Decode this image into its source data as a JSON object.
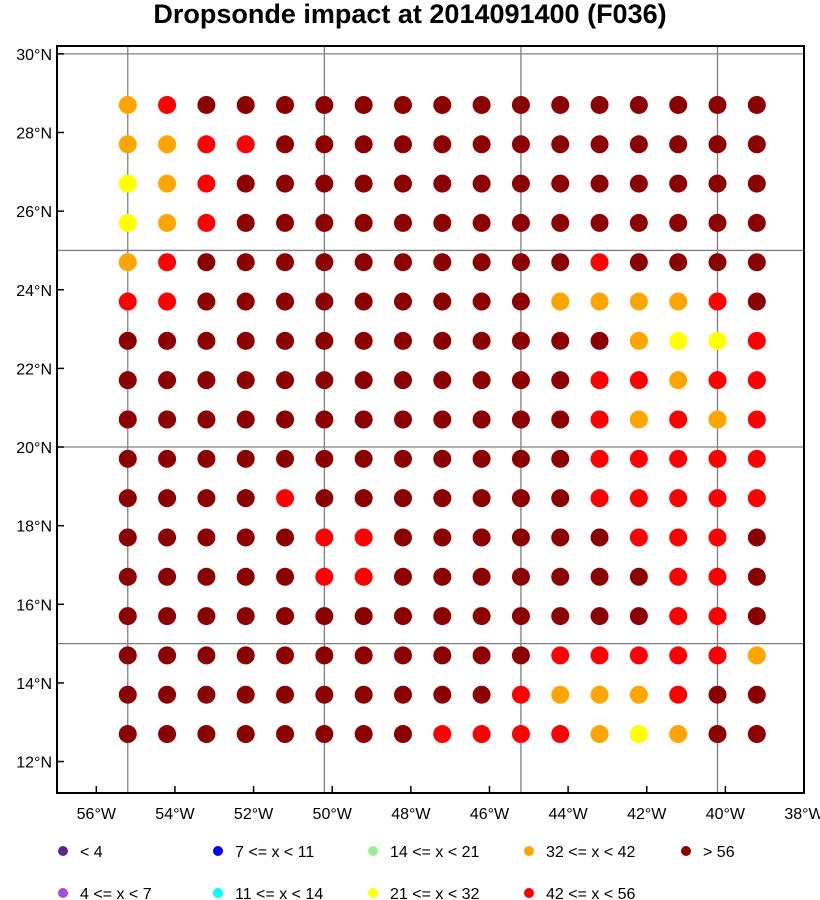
{
  "title": "Dropsonde impact at 2014091400 (F036)",
  "map": {
    "lon_range": [
      -57,
      -38
    ],
    "lat_range": [
      11.2,
      30.2
    ],
    "lon_ticks": [
      {
        "value": -56,
        "label": "56°W"
      },
      {
        "value": -54,
        "label": "54°W"
      },
      {
        "value": -52,
        "label": "52°W"
      },
      {
        "value": -50,
        "label": "50°W"
      },
      {
        "value": -48,
        "label": "48°W"
      },
      {
        "value": -46,
        "label": "46°W"
      },
      {
        "value": -44,
        "label": "44°W"
      },
      {
        "value": -42,
        "label": "42°W"
      },
      {
        "value": -40,
        "label": "40°W"
      },
      {
        "value": -38,
        "label": "38°W"
      }
    ],
    "lat_ticks": [
      {
        "value": 12,
        "label": "12°N"
      },
      {
        "value": 14,
        "label": "14°N"
      },
      {
        "value": 16,
        "label": "16°N"
      },
      {
        "value": 18,
        "label": "18°N"
      },
      {
        "value": 20,
        "label": "20°N"
      },
      {
        "value": 22,
        "label": "22°N"
      },
      {
        "value": 24,
        "label": "24°N"
      },
      {
        "value": 26,
        "label": "26°N"
      },
      {
        "value": 28,
        "label": "28°N"
      },
      {
        "value": 30,
        "label": "30°N"
      }
    ],
    "grid_lons": [
      -55.2,
      -50.2,
      -45.2,
      -40.2
    ],
    "grid_lats": [
      15,
      20,
      25,
      30
    ],
    "grid_color": "#808080"
  },
  "legend": [
    {
      "label": "<  4",
      "color": "#5b2a8e"
    },
    {
      "label": "4 <= x <  7",
      "color": "#a64ddb"
    },
    {
      "label": "7 <= x < 11",
      "color": "#0000ff"
    },
    {
      "label": "11 <= x < 14",
      "color": "#00ffff"
    },
    {
      "label": "14 <= x < 21",
      "color": "#98ee98"
    },
    {
      "label": "21 <= x < 32",
      "color": "#ffff00"
    },
    {
      "label": "32 <= x < 42",
      "color": "#ffa500"
    },
    {
      "label": "42 <= x < 56",
      "color": "#ff0000"
    },
    {
      "label": "> 56",
      "color": "#8b0000"
    }
  ],
  "chart_data": {
    "type": "scatter",
    "title": "Dropsonde impact at 2014091400 (F036)",
    "lons": [
      -55.2,
      -54.2,
      -53.2,
      -52.2,
      -51.2,
      -50.2,
      -49.2,
      -48.2,
      -47.2,
      -46.2,
      -45.2,
      -44.2,
      -43.2,
      -42.2,
      -41.2,
      -40.2,
      -39.2
    ],
    "lats": [
      28.7,
      27.7,
      26.7,
      25.7,
      24.7,
      23.7,
      22.7,
      21.7,
      20.7,
      19.7,
      18.7,
      17.7,
      16.7,
      15.7,
      14.7,
      13.7,
      12.7
    ],
    "category_ranges": [
      "< 4",
      "4-7",
      "7-11",
      "11-14",
      "14-21",
      "21-32",
      "32-42",
      "42-56",
      "> 56"
    ],
    "grid_category_index_note": "rows follow lats; columns follow lons; values are legend indices",
    "categories_grid": [
      [
        6,
        7,
        8,
        8,
        8,
        8,
        8,
        8,
        8,
        8,
        8,
        8,
        8,
        8,
        8,
        8,
        8
      ],
      [
        6,
        6,
        7,
        7,
        8,
        8,
        8,
        8,
        8,
        8,
        8,
        8,
        8,
        8,
        8,
        8,
        8
      ],
      [
        5,
        6,
        7,
        8,
        8,
        8,
        8,
        8,
        8,
        8,
        8,
        8,
        8,
        8,
        8,
        8,
        8
      ],
      [
        5,
        6,
        7,
        8,
        8,
        8,
        8,
        8,
        8,
        8,
        8,
        8,
        8,
        8,
        8,
        8,
        8
      ],
      [
        6,
        7,
        8,
        8,
        8,
        8,
        8,
        8,
        8,
        8,
        8,
        8,
        7,
        8,
        8,
        8,
        8
      ],
      [
        7,
        7,
        8,
        8,
        8,
        8,
        8,
        8,
        8,
        8,
        8,
        6,
        6,
        6,
        6,
        7,
        8
      ],
      [
        8,
        8,
        8,
        8,
        8,
        8,
        8,
        8,
        8,
        8,
        8,
        8,
        8,
        6,
        5,
        5,
        7
      ],
      [
        8,
        8,
        8,
        8,
        8,
        8,
        8,
        8,
        8,
        8,
        8,
        8,
        7,
        7,
        6,
        7,
        7
      ],
      [
        8,
        8,
        8,
        8,
        8,
        8,
        8,
        8,
        8,
        8,
        8,
        8,
        7,
        6,
        7,
        6,
        7
      ],
      [
        8,
        8,
        8,
        8,
        8,
        8,
        8,
        8,
        8,
        8,
        8,
        8,
        7,
        7,
        7,
        7,
        7
      ],
      [
        8,
        8,
        8,
        8,
        7,
        8,
        8,
        8,
        8,
        8,
        8,
        8,
        7,
        7,
        7,
        7,
        7
      ],
      [
        8,
        8,
        8,
        8,
        8,
        7,
        7,
        8,
        8,
        8,
        8,
        8,
        8,
        7,
        7,
        7,
        8
      ],
      [
        8,
        8,
        8,
        8,
        8,
        7,
        7,
        8,
        8,
        8,
        8,
        8,
        8,
        8,
        7,
        7,
        8
      ],
      [
        8,
        8,
        8,
        8,
        8,
        8,
        8,
        8,
        8,
        8,
        8,
        8,
        8,
        8,
        7,
        7,
        8
      ],
      [
        8,
        8,
        8,
        8,
        8,
        8,
        8,
        8,
        8,
        8,
        8,
        7,
        7,
        7,
        7,
        7,
        6
      ],
      [
        8,
        8,
        8,
        8,
        8,
        8,
        8,
        8,
        8,
        8,
        7,
        6,
        6,
        6,
        7,
        8,
        8
      ],
      [
        8,
        8,
        8,
        8,
        8,
        8,
        8,
        8,
        7,
        7,
        7,
        7,
        6,
        5,
        6,
        8,
        8
      ]
    ]
  }
}
